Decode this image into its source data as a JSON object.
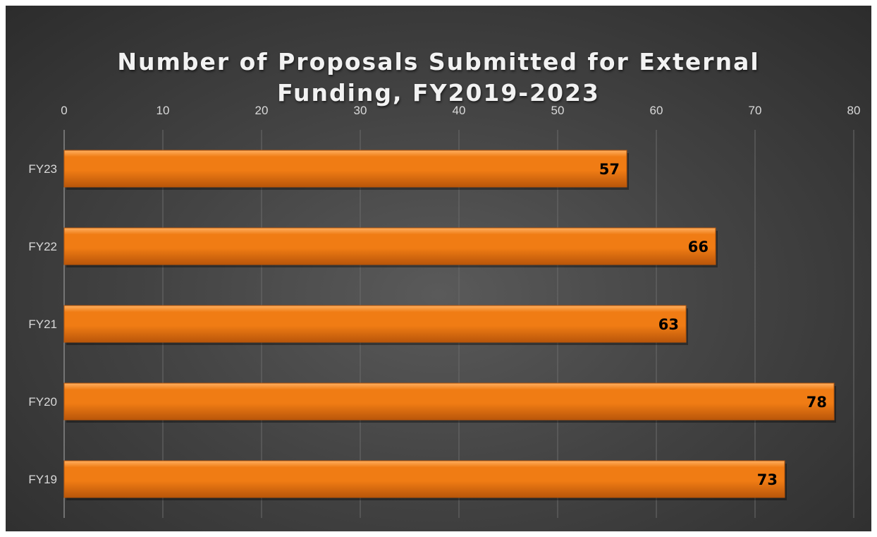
{
  "chart_data": {
    "type": "bar",
    "orientation": "horizontal",
    "title": "Number of Proposals Submitted for External Funding, FY2019-2023",
    "title_lines": [
      "Number of Proposals Submitted for External",
      "Funding, FY2019-2023"
    ],
    "categories": [
      "FY23",
      "FY22",
      "FY21",
      "FY20",
      "FY19"
    ],
    "values": [
      57,
      66,
      63,
      78,
      73
    ],
    "data_labels": [
      "57",
      "66",
      "63",
      "78",
      "73"
    ],
    "xlim": [
      0,
      80
    ],
    "x_ticks": [
      0,
      10,
      20,
      30,
      40,
      50,
      60,
      70,
      80
    ],
    "x_axis_position": "top",
    "xlabel": "",
    "ylabel": "",
    "grid": true,
    "legend": "none",
    "colors": {
      "bar": "#f07c14",
      "bar_highlight": "#ffb060",
      "bar_shadow": "#b9560a",
      "background": "#444444",
      "gridline": "#6a6a6a",
      "text": "#d9d9d9",
      "title": "#f2f2f2",
      "data_label": "#000000"
    }
  }
}
